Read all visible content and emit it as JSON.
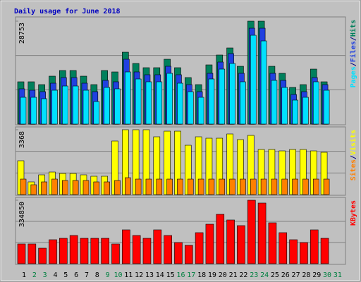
{
  "chart_data": [
    {
      "type": "bar",
      "title": "Daily usage for June 2018",
      "separator": "/",
      "ylim": [
        0,
        28753
      ],
      "yticks": [
        28753
      ],
      "series": [
        {
          "name": "Hits",
          "color": "#00805c",
          "values": [
            11815,
            11815,
            11027,
            13391,
            14966,
            14966,
            13391,
            11027,
            14966,
            14572,
            20087,
            16936,
            15754,
            15754,
            18117,
            15754,
            12997,
            11027,
            16542,
            19299,
            21268,
            16148,
            28753,
            28753,
            16148,
            14179,
            10240,
            11027,
            15360,
            11815,
            null
          ]
        },
        {
          "name": "Files",
          "color": "#2040e0",
          "values": [
            9846,
            9453,
            9059,
            11422,
            12997,
            12997,
            11422,
            9059,
            12210,
            11815,
            18117,
            14573,
            13785,
            13785,
            16148,
            13785,
            11028,
            9059,
            14179,
            17330,
            19693,
            14179,
            26782,
            26782,
            14179,
            12210,
            8271,
            9059,
            12997,
            11028,
            null
          ]
        },
        {
          "name": "Pages",
          "color": "#00e0ff",
          "values": [
            7482,
            7482,
            7088,
            9451,
            10633,
            10633,
            9451,
            6301,
            10239,
            9845,
            14571,
            12602,
            11814,
            11814,
            14177,
            11420,
            9057,
            7482,
            12602,
            15358,
            16933,
            11814,
            24809,
            23234,
            12208,
            10239,
            6695,
            7482,
            11814,
            9451,
            null
          ]
        }
      ]
    },
    {
      "type": "bar",
      "separator": "/",
      "ylim": [
        0,
        3368
      ],
      "yticks": [
        3368
      ],
      "series": [
        {
          "name": "Visits",
          "color": "#ffff00",
          "values": [
            1757,
            659,
            1025,
            1171,
            1098,
            1098,
            1025,
            952,
            952,
            2782,
            3368,
            3368,
            3368,
            3001,
            3294,
            3294,
            2562,
            3001,
            2928,
            2928,
            3148,
            2855,
            3074,
            2342,
            2342,
            2269,
            2342,
            2342,
            2269,
            2196,
            null
          ]
        },
        {
          "name": "Sites",
          "color": "#ff8000",
          "values": [
            805,
            512,
            659,
            805,
            732,
            732,
            732,
            659,
            659,
            732,
            878,
            805,
            805,
            805,
            805,
            805,
            805,
            805,
            805,
            805,
            805,
            805,
            805,
            805,
            805,
            805,
            805,
            805,
            805,
            805,
            null
          ]
        }
      ]
    },
    {
      "type": "bar",
      "ylim": [
        0,
        334850
      ],
      "yticks": [
        334850
      ],
      "categories": [
        "1",
        "2",
        "3",
        "4",
        "5",
        "6",
        "7",
        "8",
        "9",
        "10",
        "11",
        "12",
        "13",
        "14",
        "15",
        "16",
        "17",
        "18",
        "19",
        "20",
        "21",
        "22",
        "23",
        "24",
        "25",
        "26",
        "27",
        "28",
        "29",
        "30",
        "31"
      ],
      "category_colors": [
        "#000000",
        "#008040",
        "#008040",
        "#000000",
        "#000000",
        "#000000",
        "#000000",
        "#000000",
        "#008040",
        "#008040",
        "#000000",
        "#000000",
        "#000000",
        "#000000",
        "#000000",
        "#008040",
        "#008040",
        "#000000",
        "#000000",
        "#000000",
        "#000000",
        "#000000",
        "#008040",
        "#008040",
        "#000000",
        "#000000",
        "#000000",
        "#000000",
        "#000000",
        "#008040",
        "#008040"
      ],
      "series": [
        {
          "name": "KBytes",
          "color": "#ff0000",
          "values": [
            104177,
            104177,
            81853,
            126500,
            133940,
            148822,
            133940,
            133940,
            133940,
            104177,
            178587,
            148822,
            133940,
            178587,
            148822,
            111617,
            96736,
            163704,
            208353,
            260442,
            230676,
            200912,
            334850,
            319967,
            215794,
            163704,
            126500,
            111617,
            178587,
            133940,
            null
          ]
        }
      ]
    }
  ]
}
